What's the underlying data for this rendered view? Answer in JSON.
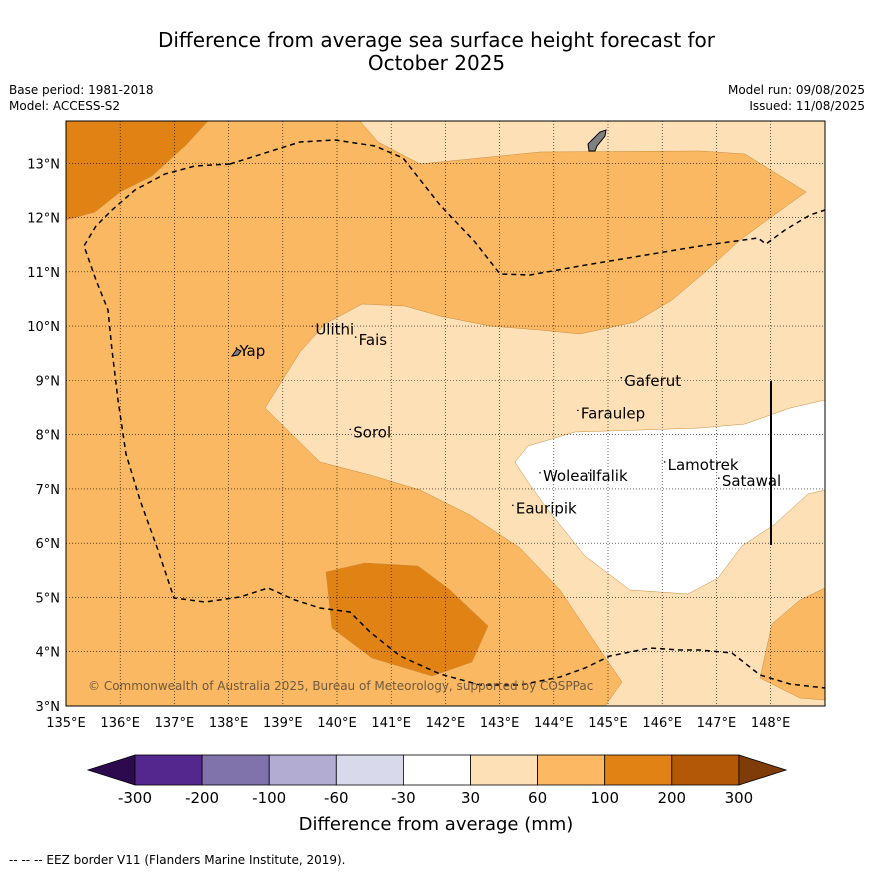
{
  "title_line1": "Difference from average sea surface height forecast for",
  "title_line2": "October 2025",
  "meta": {
    "base_period": "Base period: 1981-2018",
    "model": "Model: ACCESS-S2",
    "model_run": "Model run: 09/08/2025",
    "issued": "Issued: 11/08/2025"
  },
  "copyright": "© Commonwealth of Australia 2025, Bureau of Meteorology, supported by COSPPac",
  "axes": {
    "x_ticks": [
      "135°E",
      "136°E",
      "137°E",
      "138°E",
      "139°E",
      "140°E",
      "141°E",
      "142°E",
      "143°E",
      "144°E",
      "145°E",
      "146°E",
      "147°E",
      "148°E"
    ],
    "y_ticks": [
      "3°N",
      "4°N",
      "5°N",
      "6°N",
      "7°N",
      "8°N",
      "9°N",
      "10°N",
      "11°N",
      "12°N",
      "13°N"
    ]
  },
  "places": [
    {
      "name": "Yap",
      "lon": 138.2,
      "lat": 9.45
    },
    {
      "name": "Ulithi",
      "lon": 139.6,
      "lat": 9.85
    },
    {
      "name": "Fais",
      "lon": 140.4,
      "lat": 9.65
    },
    {
      "name": "Sorol",
      "lon": 140.3,
      "lat": 7.95
    },
    {
      "name": "Gaferut",
      "lon": 145.3,
      "lat": 8.9
    },
    {
      "name": "Faraulep",
      "lon": 144.5,
      "lat": 8.3
    },
    {
      "name": "Woleai",
      "lon": 143.8,
      "lat": 7.15
    },
    {
      "name": "Ifalik",
      "lon": 144.7,
      "lat": 7.15
    },
    {
      "name": "Lamotrek",
      "lon": 146.1,
      "lat": 7.35
    },
    {
      "name": "Satawal",
      "lon": 147.1,
      "lat": 7.05
    },
    {
      "name": "Eauripik",
      "lon": 143.3,
      "lat": 6.55
    }
  ],
  "colorbar": {
    "label": "Difference from average (mm)",
    "ticks": [
      "-300",
      "-200",
      "-100",
      "-60",
      "-30",
      "30",
      "60",
      "100",
      "200",
      "300"
    ],
    "colors": [
      "#2d0a4e",
      "#54278f",
      "#8073ac",
      "#b2abd2",
      "#d8daeb",
      "#ffffff",
      "#fee0b6",
      "#fdb863",
      "#e08214",
      "#b35806",
      "#7f3b08"
    ]
  },
  "legend_colors": {
    "light": "#fde0b6",
    "medium": "#fab863",
    "dark": "#e08214",
    "white": "#ffffff",
    "land": "#808080",
    "eez": "#000000"
  },
  "footnote": "-- -- -- EEZ border V11 (Flanders Marine Institute, 2019)."
}
